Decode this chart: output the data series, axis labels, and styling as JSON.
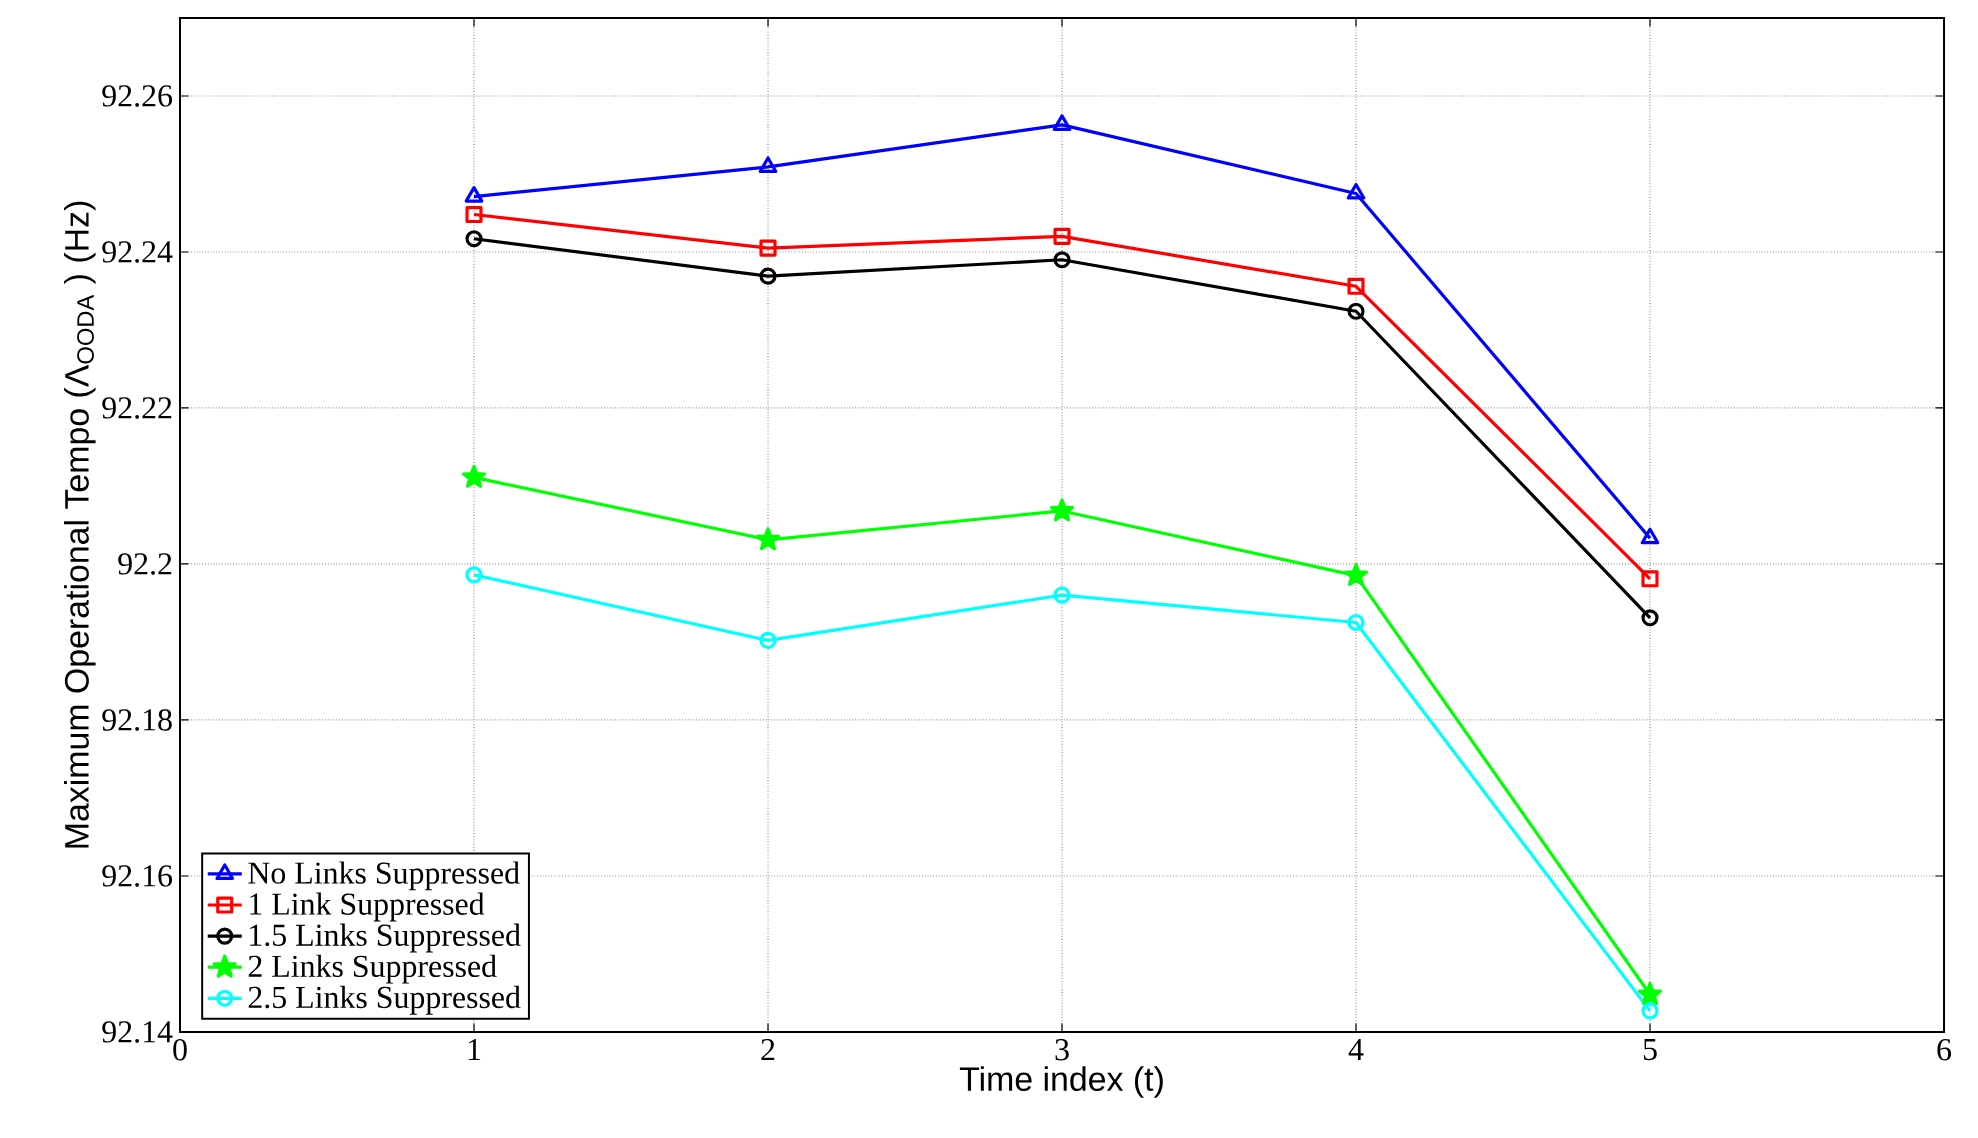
{
  "chart_data": {
    "type": "line",
    "xlabel": "Time index (t)",
    "ylabel": "Maximum Operational Tempo (Λ$_{OODA}$ ) (Hz)",
    "x": [
      1,
      2,
      3,
      4,
      5
    ],
    "series": [
      {
        "name": "No Links Suppressed",
        "color": "#0000ff",
        "marker": "triangle",
        "values": [
          92.2471,
          92.2509,
          92.2563,
          92.2475,
          92.2033
        ]
      },
      {
        "name": "1 Link Suppressed",
        "color": "#ff0000",
        "marker": "square",
        "values": [
          92.2448,
          92.2405,
          92.242,
          92.2356,
          92.1981
        ]
      },
      {
        "name": "1.5 Links Suppressed",
        "color": "#000000",
        "marker": "circle",
        "values": [
          92.2417,
          92.2369,
          92.239,
          92.2324,
          92.1931
        ]
      },
      {
        "name": "2 Links Suppressed",
        "color": "#00ff00",
        "marker": "star",
        "values": [
          92.2111,
          92.2031,
          92.2068,
          92.1985,
          92.1448
        ]
      },
      {
        "name": "2.5 Links Suppressed",
        "color": "#00ffff",
        "marker": "circle",
        "values": [
          92.1986,
          92.1902,
          92.196,
          92.1925,
          92.1427
        ]
      }
    ],
    "xlim": [
      0,
      6
    ],
    "xticks": [
      0,
      1,
      2,
      3,
      4,
      5,
      6
    ],
    "ylim": [
      92.14,
      92.27
    ],
    "yticks": [
      92.14,
      92.16,
      92.18,
      92.2,
      92.22,
      92.24,
      92.26
    ],
    "grid": true,
    "legend": "bottom left",
    "line_style": "solid"
  }
}
